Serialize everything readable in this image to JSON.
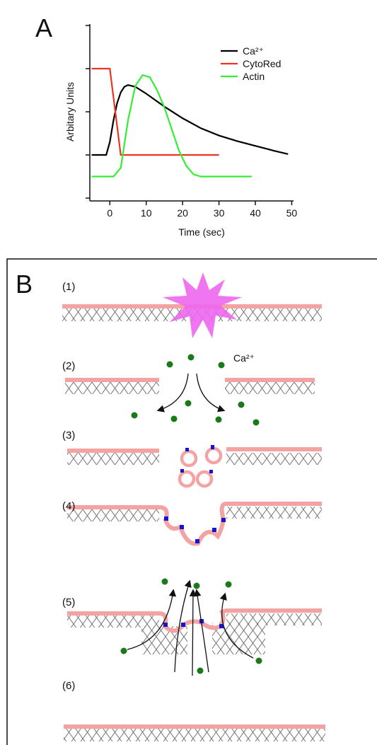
{
  "panel_a": {
    "label": "A"
  },
  "chart_data": {
    "type": "line",
    "xlabel": "Time (sec)",
    "ylabel": "Arbitary Units",
    "xlim": [
      -5.5,
      50.5
    ],
    "xticks": [
      0,
      10,
      20,
      30,
      40,
      50
    ],
    "ylim": [
      0,
      4
    ],
    "yticks": [
      0,
      1,
      2,
      3,
      4
    ],
    "series": [
      {
        "name": "Ca²⁺",
        "color": "#000000",
        "x": [
          -5,
          -1,
          0,
          1,
          2,
          3,
          4,
          5,
          7,
          10,
          15,
          20,
          25,
          30,
          35,
          40,
          45,
          49
        ],
        "values": [
          1,
          1,
          1.3,
          1.8,
          2.2,
          2.45,
          2.58,
          2.62,
          2.58,
          2.42,
          2.12,
          1.85,
          1.62,
          1.45,
          1.32,
          1.21,
          1.1,
          1.02
        ]
      },
      {
        "name": "CytoRed",
        "color": "#ee3322",
        "x": [
          -5,
          0,
          3,
          30
        ],
        "values": [
          3,
          3,
          1,
          1
        ]
      },
      {
        "name": "Actin",
        "color": "#33ee33",
        "x": [
          -5,
          1,
          3,
          5,
          7,
          9,
          11,
          13,
          15,
          17,
          19,
          21,
          23,
          25,
          39
        ],
        "values": [
          0.5,
          0.5,
          0.7,
          1.8,
          2.6,
          2.85,
          2.8,
          2.5,
          2.1,
          1.6,
          1.1,
          0.75,
          0.55,
          0.5,
          0.5
        ]
      }
    ]
  },
  "panel_b": {
    "label": "B",
    "steps": [
      "(1)",
      "(2)",
      "(3)",
      "(4)",
      "(5)",
      "(6)"
    ],
    "ion_label": "Ca²⁺"
  }
}
